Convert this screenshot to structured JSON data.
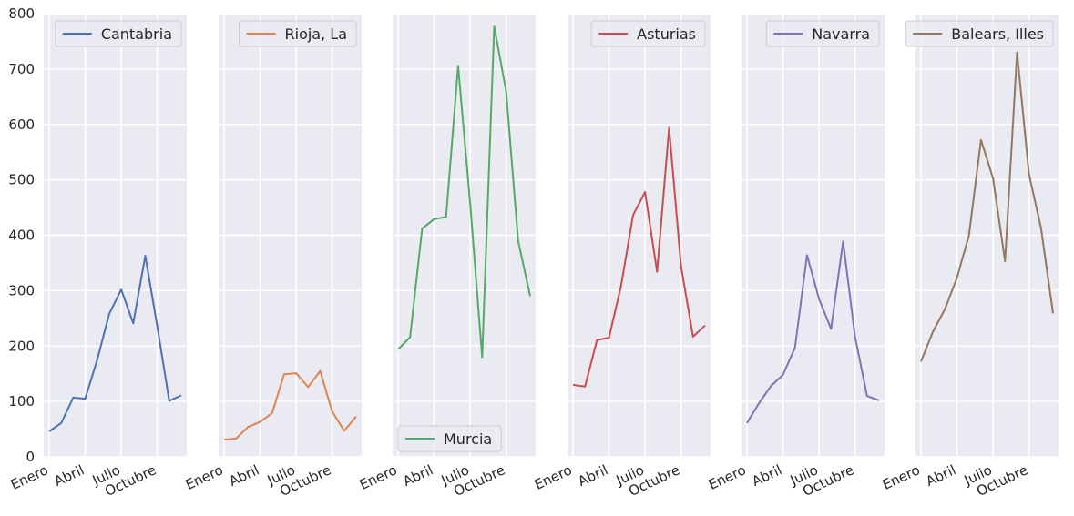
{
  "chart_data": {
    "type": "line",
    "x_ticks": [
      "Enero",
      "Abril",
      "Julio",
      "Octubre"
    ],
    "y_ticks": [
      0,
      100,
      200,
      300,
      400,
      500,
      600,
      700,
      800
    ],
    "ylim": [
      0,
      800
    ],
    "grid": true,
    "panels": [
      {
        "name": "Cantabria",
        "color": "#4c72b0",
        "legend": "top-right",
        "values": [
          46,
          61,
          107,
          105,
          175,
          258,
          302,
          241,
          363,
          236,
          101,
          111
        ]
      },
      {
        "name": "Rioja, La",
        "color": "#dd8452",
        "legend": "top-right",
        "values": [
          31,
          33,
          54,
          63,
          79,
          149,
          151,
          126,
          155,
          82,
          47,
          73
        ]
      },
      {
        "name": "Murcia",
        "color": "#55a868",
        "legend": "bottom-left",
        "values": [
          194,
          216,
          412,
          429,
          433,
          706,
          458,
          180,
          777,
          660,
          390,
          290
        ]
      },
      {
        "name": "Asturias",
        "color": "#c44e52",
        "legend": "top-right",
        "values": [
          130,
          127,
          211,
          215,
          308,
          436,
          478,
          334,
          594,
          344,
          217,
          237
        ]
      },
      {
        "name": "Navarra",
        "color": "#8172b3",
        "legend": "top-right",
        "values": [
          61,
          97,
          128,
          148,
          197,
          364,
          285,
          231,
          389,
          217,
          110,
          102
        ]
      },
      {
        "name": "Balears, Illes",
        "color": "#937860",
        "legend": "top-right",
        "values": [
          172,
          226,
          267,
          323,
          400,
          572,
          503,
          353,
          730,
          510,
          413,
          259
        ]
      }
    ]
  }
}
